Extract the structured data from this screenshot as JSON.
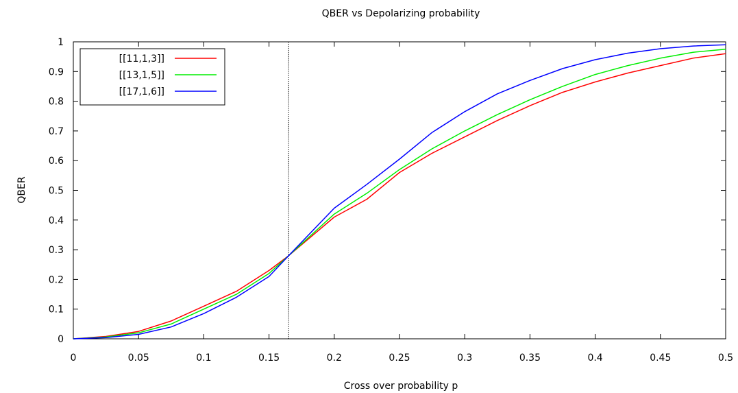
{
  "chart_data": {
    "type": "line",
    "title": "QBER vs Depolarizing probability",
    "xlabel": "Cross over probability p",
    "ylabel": "QBER",
    "xlim": [
      0,
      0.5
    ],
    "ylim": [
      0,
      1
    ],
    "xticks": [
      0,
      0.05,
      0.1,
      0.15,
      0.2,
      0.25,
      0.3,
      0.35,
      0.4,
      0.45,
      0.5
    ],
    "xtick_labels": [
      "0",
      "0.05",
      "0.1",
      "0.15",
      "0.2",
      "0.25",
      "0.3",
      "0.35",
      "0.4",
      "0.45",
      "0.5"
    ],
    "yticks": [
      0,
      0.1,
      0.2,
      0.3,
      0.4,
      0.5,
      0.6,
      0.7,
      0.8,
      0.9,
      1
    ],
    "ytick_labels": [
      "0",
      "0.1",
      "0.2",
      "0.3",
      "0.4",
      "0.5",
      "0.6",
      "0.7",
      "0.8",
      "0.9",
      "1"
    ],
    "grid": false,
    "legend_position": "top-left",
    "vline_x": 0.165,
    "x": [
      0,
      0.025,
      0.05,
      0.075,
      0.1,
      0.125,
      0.15,
      0.165,
      0.2,
      0.225,
      0.25,
      0.275,
      0.3,
      0.325,
      0.35,
      0.375,
      0.4,
      0.425,
      0.45,
      0.475,
      0.5
    ],
    "series": [
      {
        "name": "[[11,1,3]]",
        "color": "#ff0000",
        "values": [
          0,
          0.008,
          0.025,
          0.06,
          0.11,
          0.16,
          0.23,
          0.28,
          0.41,
          0.47,
          0.56,
          0.625,
          0.68,
          0.735,
          0.785,
          0.83,
          0.865,
          0.895,
          0.92,
          0.945,
          0.96
        ]
      },
      {
        "name": "[[13,1,5]]",
        "color": "#00ee00",
        "values": [
          0,
          0.006,
          0.02,
          0.05,
          0.1,
          0.15,
          0.22,
          0.28,
          0.42,
          0.49,
          0.57,
          0.64,
          0.7,
          0.755,
          0.805,
          0.85,
          0.89,
          0.92,
          0.945,
          0.965,
          0.975
        ]
      },
      {
        "name": "[[17,1,6]]",
        "color": "#0000ff",
        "values": [
          0,
          0.004,
          0.015,
          0.04,
          0.085,
          0.14,
          0.21,
          0.28,
          0.44,
          0.52,
          0.605,
          0.695,
          0.765,
          0.825,
          0.87,
          0.91,
          0.94,
          0.962,
          0.977,
          0.986,
          0.99
        ]
      }
    ]
  }
}
